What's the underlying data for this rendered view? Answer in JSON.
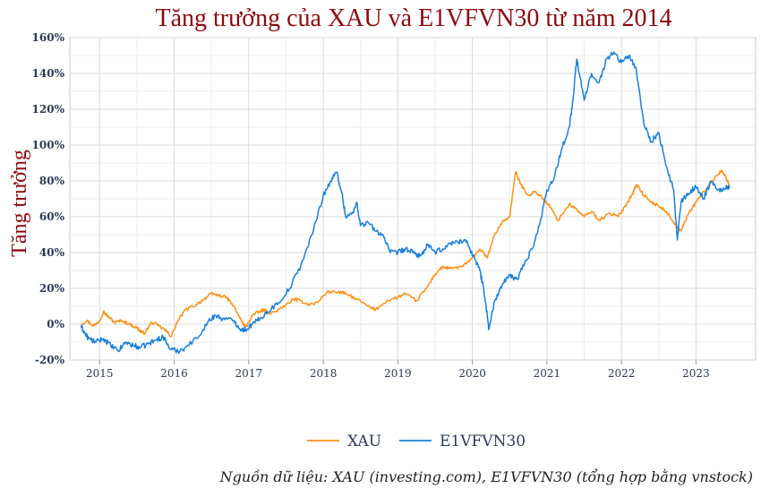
{
  "chart_data": {
    "type": "line",
    "title": "Tăng trưởng của XAU và E1VFVN30 từ năm 2014",
    "ylabel": "Tăng trưởng",
    "xlabel": "",
    "source_note": "Nguồn dữ liệu: XAU (investing.com), E1VFVN30 (tổng hợp bằng vnstock)",
    "x_range": [
      2014.6,
      2023.8
    ],
    "ylim": [
      -20,
      160
    ],
    "y_ticks": [
      -20,
      0,
      20,
      40,
      60,
      80,
      100,
      120,
      140,
      160
    ],
    "y_tick_labels": [
      "-20%",
      "0%",
      "20%",
      "40%",
      "60%",
      "80%",
      "100%",
      "120%",
      "140%",
      "160%"
    ],
    "x_ticks": [
      2015,
      2016,
      2017,
      2018,
      2019,
      2020,
      2021,
      2022,
      2023
    ],
    "x_tick_labels": [
      "2015",
      "2016",
      "2017",
      "2018",
      "2019",
      "2020",
      "2021",
      "2022",
      "2023"
    ],
    "grid": true,
    "legend_position": "bottom-center",
    "series": [
      {
        "name": "XAU",
        "color": "#ff9016",
        "points": [
          [
            2014.75,
            0
          ],
          [
            2014.83,
            2
          ],
          [
            2014.92,
            -1
          ],
          [
            2015.0,
            2
          ],
          [
            2015.05,
            7
          ],
          [
            2015.12,
            4
          ],
          [
            2015.2,
            1
          ],
          [
            2015.3,
            2
          ],
          [
            2015.4,
            0
          ],
          [
            2015.5,
            -2
          ],
          [
            2015.55,
            -4
          ],
          [
            2015.6,
            -5
          ],
          [
            2015.7,
            1
          ],
          [
            2015.8,
            -1
          ],
          [
            2015.9,
            -4
          ],
          [
            2015.96,
            -7
          ],
          [
            2016.05,
            2
          ],
          [
            2016.15,
            8
          ],
          [
            2016.3,
            11
          ],
          [
            2016.4,
            14
          ],
          [
            2016.5,
            17
          ],
          [
            2016.6,
            16
          ],
          [
            2016.7,
            15
          ],
          [
            2016.8,
            10
          ],
          [
            2016.9,
            2
          ],
          [
            2016.96,
            -2
          ],
          [
            2017.05,
            5
          ],
          [
            2017.15,
            7
          ],
          [
            2017.2,
            8
          ],
          [
            2017.3,
            6
          ],
          [
            2017.45,
            9
          ],
          [
            2017.6,
            14
          ],
          [
            2017.7,
            13
          ],
          [
            2017.8,
            11
          ],
          [
            2017.92,
            12
          ],
          [
            2018.05,
            18
          ],
          [
            2018.2,
            18
          ],
          [
            2018.3,
            17
          ],
          [
            2018.45,
            14
          ],
          [
            2018.6,
            10
          ],
          [
            2018.7,
            8
          ],
          [
            2018.85,
            13
          ],
          [
            2019.0,
            15
          ],
          [
            2019.1,
            17
          ],
          [
            2019.25,
            13
          ],
          [
            2019.4,
            21
          ],
          [
            2019.5,
            28
          ],
          [
            2019.6,
            32
          ],
          [
            2019.7,
            31
          ],
          [
            2019.85,
            32
          ],
          [
            2019.96,
            35
          ],
          [
            2020.1,
            42
          ],
          [
            2020.2,
            37
          ],
          [
            2020.3,
            50
          ],
          [
            2020.4,
            57
          ],
          [
            2020.5,
            60
          ],
          [
            2020.58,
            85
          ],
          [
            2020.65,
            78
          ],
          [
            2020.75,
            72
          ],
          [
            2020.85,
            74
          ],
          [
            2020.95,
            70
          ],
          [
            2021.05,
            65
          ],
          [
            2021.15,
            58
          ],
          [
            2021.3,
            67
          ],
          [
            2021.4,
            64
          ],
          [
            2021.5,
            60
          ],
          [
            2021.6,
            63
          ],
          [
            2021.7,
            58
          ],
          [
            2021.85,
            62
          ],
          [
            2021.96,
            60
          ],
          [
            2022.05,
            66
          ],
          [
            2022.15,
            73
          ],
          [
            2022.2,
            78
          ],
          [
            2022.3,
            72
          ],
          [
            2022.4,
            68
          ],
          [
            2022.5,
            66
          ],
          [
            2022.6,
            63
          ],
          [
            2022.7,
            57
          ],
          [
            2022.8,
            52
          ],
          [
            2022.9,
            62
          ],
          [
            2023.0,
            68
          ],
          [
            2023.1,
            74
          ],
          [
            2023.2,
            79
          ],
          [
            2023.3,
            84
          ],
          [
            2023.35,
            86
          ],
          [
            2023.42,
            80
          ],
          [
            2023.45,
            78
          ]
        ]
      },
      {
        "name": "E1VFVN30",
        "color": "#1a7fd9",
        "points": [
          [
            2014.75,
            -1
          ],
          [
            2014.8,
            -5
          ],
          [
            2014.85,
            -8
          ],
          [
            2014.95,
            -10
          ],
          [
            2015.05,
            -8
          ],
          [
            2015.15,
            -12
          ],
          [
            2015.25,
            -15
          ],
          [
            2015.35,
            -10
          ],
          [
            2015.45,
            -12
          ],
          [
            2015.55,
            -13
          ],
          [
            2015.65,
            -11
          ],
          [
            2015.75,
            -9
          ],
          [
            2015.85,
            -7
          ],
          [
            2015.95,
            -14
          ],
          [
            2016.05,
            -15
          ],
          [
            2016.15,
            -13
          ],
          [
            2016.3,
            -8
          ],
          [
            2016.45,
            1
          ],
          [
            2016.55,
            5
          ],
          [
            2016.65,
            3
          ],
          [
            2016.8,
            2
          ],
          [
            2016.9,
            -3
          ],
          [
            2016.96,
            -3
          ],
          [
            2017.05,
            0
          ],
          [
            2017.15,
            3
          ],
          [
            2017.25,
            7
          ],
          [
            2017.4,
            12
          ],
          [
            2017.55,
            20
          ],
          [
            2017.7,
            33
          ],
          [
            2017.85,
            50
          ],
          [
            2018.0,
            72
          ],
          [
            2018.1,
            80
          ],
          [
            2018.18,
            85
          ],
          [
            2018.25,
            73
          ],
          [
            2018.3,
            60
          ],
          [
            2018.4,
            62
          ],
          [
            2018.45,
            68
          ],
          [
            2018.5,
            55
          ],
          [
            2018.6,
            57
          ],
          [
            2018.7,
            52
          ],
          [
            2018.8,
            50
          ],
          [
            2018.9,
            40
          ],
          [
            2019.0,
            40
          ],
          [
            2019.1,
            42
          ],
          [
            2019.2,
            40
          ],
          [
            2019.3,
            38
          ],
          [
            2019.4,
            44
          ],
          [
            2019.5,
            40
          ],
          [
            2019.6,
            42
          ],
          [
            2019.7,
            45
          ],
          [
            2019.8,
            46
          ],
          [
            2019.9,
            47
          ],
          [
            2019.96,
            43
          ],
          [
            2020.05,
            35
          ],
          [
            2020.1,
            30
          ],
          [
            2020.15,
            20
          ],
          [
            2020.2,
            5
          ],
          [
            2020.22,
            -3
          ],
          [
            2020.3,
            13
          ],
          [
            2020.4,
            22
          ],
          [
            2020.5,
            27
          ],
          [
            2020.6,
            25
          ],
          [
            2020.7,
            34
          ],
          [
            2020.8,
            42
          ],
          [
            2020.9,
            55
          ],
          [
            2021.0,
            75
          ],
          [
            2021.1,
            82
          ],
          [
            2021.2,
            98
          ],
          [
            2021.3,
            110
          ],
          [
            2021.35,
            125
          ],
          [
            2021.4,
            148
          ],
          [
            2021.5,
            125
          ],
          [
            2021.6,
            140
          ],
          [
            2021.7,
            135
          ],
          [
            2021.8,
            148
          ],
          [
            2021.9,
            152
          ],
          [
            2022.0,
            146
          ],
          [
            2022.1,
            150
          ],
          [
            2022.2,
            142
          ],
          [
            2022.3,
            112
          ],
          [
            2022.4,
            102
          ],
          [
            2022.5,
            107
          ],
          [
            2022.6,
            88
          ],
          [
            2022.7,
            75
          ],
          [
            2022.75,
            47
          ],
          [
            2022.8,
            68
          ],
          [
            2022.9,
            73
          ],
          [
            2023.0,
            77
          ],
          [
            2023.1,
            70
          ],
          [
            2023.2,
            80
          ],
          [
            2023.3,
            75
          ],
          [
            2023.4,
            76
          ],
          [
            2023.45,
            77
          ]
        ]
      }
    ]
  }
}
